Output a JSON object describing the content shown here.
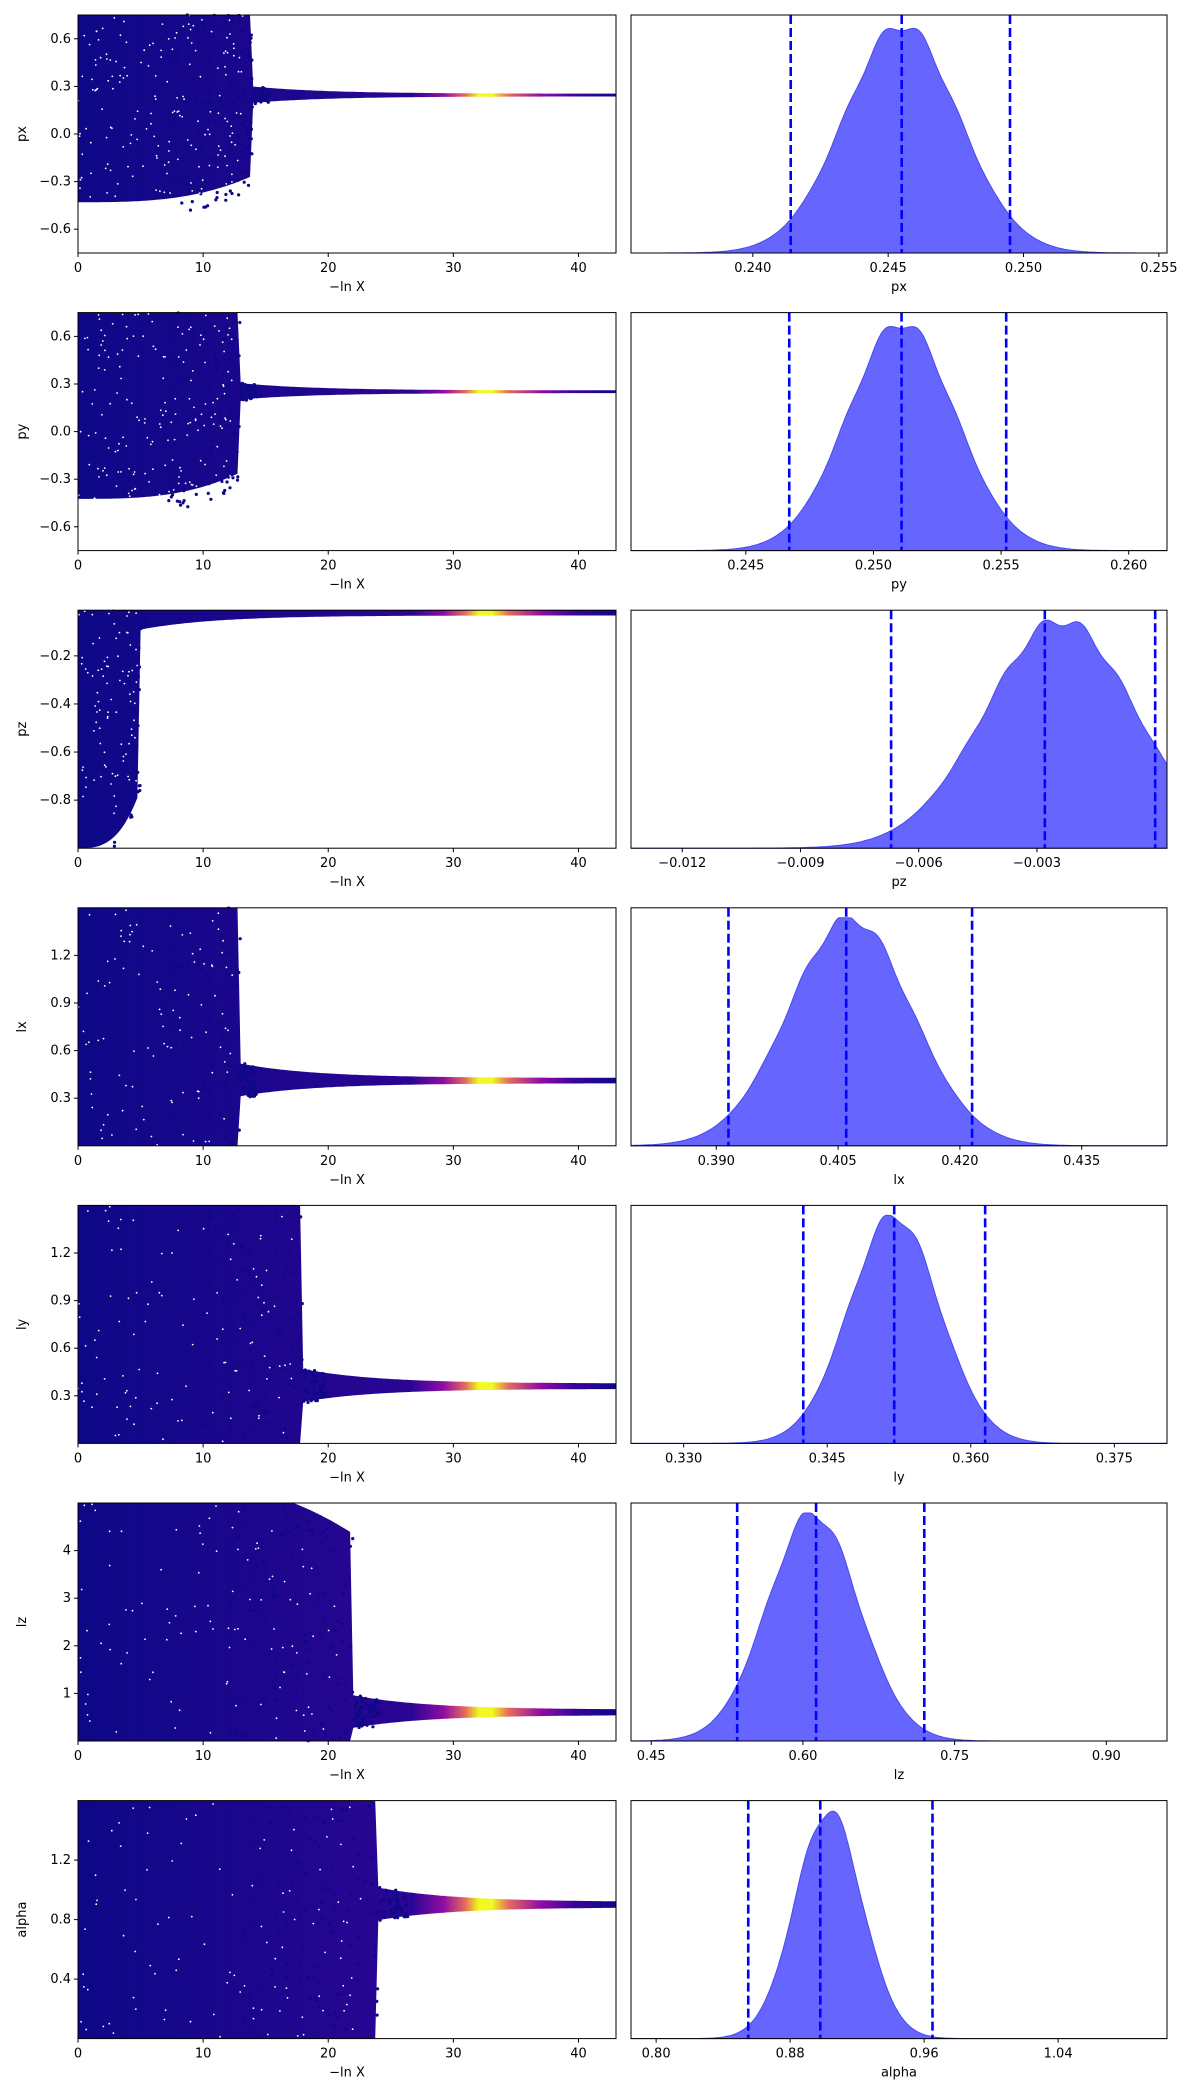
{
  "colors": {
    "trace_low": "#0d0887",
    "trace_mid": "#b12a90",
    "trace_high": "#f0f921",
    "posterior_fill": "#6666ff",
    "posterior_edge": "#4848ee",
    "quantile_line": "#0000ff"
  },
  "chart_data": [
    {
      "type": "scatter",
      "row": 0,
      "ylabel": "px",
      "xlabel": "−ln X",
      "xlim": [
        0,
        43
      ],
      "ylim": [
        -0.75,
        0.75
      ],
      "xticks": [
        0,
        10,
        20,
        30,
        40
      ],
      "yticks": [
        -0.6,
        -0.3,
        0.0,
        0.3,
        0.6
      ],
      "ytick_labels": [
        "−0.6",
        "−0.3",
        "0.0",
        "0.3",
        "0.6"
      ],
      "converged_value": 0.245,
      "spread_start": 0.75,
      "cliff": 14,
      "peak_intensity_at": 32
    },
    {
      "type": "area",
      "row": 0,
      "xlabel": "px",
      "xlim": [
        0.2355,
        0.2553
      ],
      "xticks": [
        0.24,
        0.245,
        0.25,
        0.255
      ],
      "xtick_labels": [
        "0.240",
        "0.245",
        "0.250",
        "0.255"
      ],
      "mean": 0.2455,
      "sigma": 0.0021,
      "quantiles": [
        0.2414,
        0.2455,
        0.2495
      ]
    },
    {
      "type": "scatter",
      "row": 1,
      "ylabel": "py",
      "xlabel": "−ln X",
      "xlim": [
        0,
        43
      ],
      "ylim": [
        -0.75,
        0.75
      ],
      "xticks": [
        0,
        10,
        20,
        30,
        40
      ],
      "yticks": [
        -0.6,
        -0.3,
        0.0,
        0.3,
        0.6
      ],
      "ytick_labels": [
        "−0.6",
        "−0.3",
        "0.0",
        "0.3",
        "0.6"
      ],
      "converged_value": 0.251,
      "spread_start": 0.75,
      "cliff": 13,
      "peak_intensity_at": 32
    },
    {
      "type": "area",
      "row": 1,
      "xlabel": "py",
      "xlim": [
        0.2405,
        0.2615
      ],
      "xticks": [
        0.245,
        0.25,
        0.255,
        0.26
      ],
      "xtick_labels": [
        "0.245",
        "0.250",
        "0.255",
        "0.260"
      ],
      "mean": 0.2511,
      "sigma": 0.0021,
      "quantiles": [
        0.2467,
        0.2511,
        0.2552
      ]
    },
    {
      "type": "scatter",
      "row": 2,
      "ylabel": "pz",
      "xlabel": "−ln X",
      "xlim": [
        0,
        43
      ],
      "ylim": [
        -1.0,
        -0.01
      ],
      "xticks": [
        0,
        10,
        20,
        30,
        40
      ],
      "yticks": [
        -0.8,
        -0.6,
        -0.4,
        -0.2
      ],
      "ytick_labels": [
        "−0.8",
        "−0.6",
        "−0.4",
        "−0.2"
      ],
      "converged_value": -0.02,
      "spread_start": 0.98,
      "cliff": 5,
      "peak_intensity_at": 32
    },
    {
      "type": "area",
      "row": 2,
      "xlabel": "pz",
      "xlim": [
        -0.0133,
        0.0003
      ],
      "xticks": [
        -0.012,
        -0.009,
        -0.006,
        -0.003
      ],
      "xtick_labels": [
        "−0.012",
        "−0.009",
        "−0.006",
        "−0.003"
      ],
      "mean": -0.0024,
      "sigma": 0.0019,
      "quantiles": [
        -0.0067,
        -0.0028,
        0.0
      ]
    },
    {
      "type": "scatter",
      "row": 3,
      "ylabel": "lx",
      "xlabel": "−ln X",
      "xlim": [
        0,
        43
      ],
      "ylim": [
        0.0,
        1.5
      ],
      "xticks": [
        0,
        10,
        20,
        30,
        40
      ],
      "yticks": [
        0.3,
        0.6,
        0.9,
        1.2
      ],
      "ytick_labels": [
        "0.3",
        "0.6",
        "0.9",
        "1.2"
      ],
      "converged_value": 0.41,
      "spread_start": 1.5,
      "cliff": 13,
      "peak_intensity_at": 32
    },
    {
      "type": "area",
      "row": 3,
      "xlabel": "lx",
      "xlim": [
        0.3795,
        0.4455
      ],
      "xticks": [
        0.39,
        0.405,
        0.42,
        0.435
      ],
      "xtick_labels": [
        "0.390",
        "0.405",
        "0.420",
        "0.435"
      ],
      "mean": 0.4065,
      "sigma": 0.0075,
      "quantiles": [
        0.3915,
        0.406,
        0.4215
      ]
    },
    {
      "type": "scatter",
      "row": 4,
      "ylabel": "ly",
      "xlabel": "−ln X",
      "xlim": [
        0,
        43
      ],
      "ylim": [
        0.0,
        1.5
      ],
      "xticks": [
        0,
        10,
        20,
        30,
        40
      ],
      "yticks": [
        0.3,
        0.6,
        0.9,
        1.2
      ],
      "ytick_labels": [
        "0.3",
        "0.6",
        "0.9",
        "1.2"
      ],
      "converged_value": 0.36,
      "spread_start": 1.5,
      "cliff": 18,
      "peak_intensity_at": 32
    },
    {
      "type": "area",
      "row": 4,
      "xlabel": "ly",
      "xlim": [
        0.3245,
        0.3805
      ],
      "xticks": [
        0.33,
        0.345,
        0.36,
        0.375
      ],
      "xtick_labels": [
        "0.330",
        "0.345",
        "0.360",
        "0.375"
      ],
      "mean": 0.352,
      "sigma": 0.0047,
      "quantiles": [
        0.3425,
        0.352,
        0.3615
      ]
    },
    {
      "type": "scatter",
      "row": 5,
      "ylabel": "lz",
      "xlabel": "−ln X",
      "xlim": [
        0,
        43
      ],
      "ylim": [
        0.0,
        5.0
      ],
      "xticks": [
        0,
        10,
        20,
        30,
        40
      ],
      "yticks": [
        1,
        2,
        3,
        4
      ],
      "ytick_labels": [
        "1",
        "2",
        "3",
        "4"
      ],
      "converged_value": 0.6,
      "spread_start": 5.0,
      "cliff": 22,
      "peak_intensity_at": 32
    },
    {
      "type": "area",
      "row": 5,
      "xlabel": "lz",
      "xlim": [
        0.43,
        0.96
      ],
      "xticks": [
        0.45,
        0.6,
        0.75,
        0.9
      ],
      "xtick_labels": [
        "0.45",
        "0.60",
        "0.75",
        "0.90"
      ],
      "mean": 0.61,
      "sigma": 0.045,
      "quantiles": [
        0.535,
        0.613,
        0.72
      ]
    },
    {
      "type": "scatter",
      "row": 6,
      "ylabel": "alpha",
      "xlabel": "−ln X",
      "xlim": [
        0,
        43
      ],
      "ylim": [
        0.0,
        1.6
      ],
      "xticks": [
        0,
        10,
        20,
        30,
        40
      ],
      "yticks": [
        0.4,
        0.8,
        1.2
      ],
      "ytick_labels": [
        "0.4",
        "0.8",
        "1.2"
      ],
      "converged_value": 0.9,
      "spread_start": 1.6,
      "cliff": 24,
      "peak_intensity_at": 32
    },
    {
      "type": "area",
      "row": 6,
      "xlabel": "alpha",
      "xlim": [
        0.785,
        1.105
      ],
      "xticks": [
        0.8,
        0.88,
        0.96,
        1.04
      ],
      "xtick_labels": [
        "0.80",
        "0.88",
        "0.96",
        "1.04"
      ],
      "mean": 0.903,
      "sigma": 0.02,
      "quantiles": [
        0.855,
        0.898,
        0.965
      ]
    }
  ]
}
